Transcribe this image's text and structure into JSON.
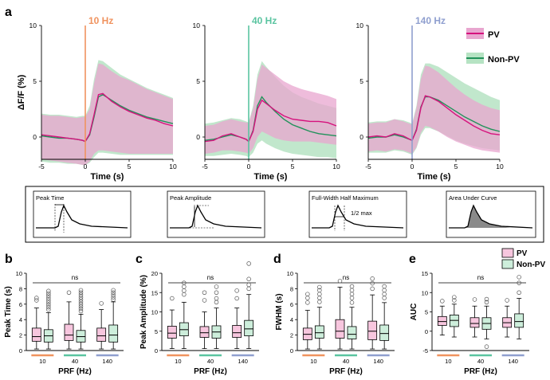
{
  "panel_labels": {
    "a": "a",
    "b": "b",
    "c": "c",
    "d": "d",
    "e": "e"
  },
  "colors": {
    "pv": "#d6127d",
    "pv_fill": "#e8a6cf",
    "nonpv": "#21925a",
    "nonpv_fill": "#b6e3c3",
    "hz10": "#f0935f",
    "hz40": "#5ac4a0",
    "hz140": "#8f9fcf"
  },
  "legend_top": {
    "pv": "PV",
    "nonpv": "Non-PV"
  },
  "legend_bottom": {
    "pv": "PV",
    "nonpv": "Non-PV"
  },
  "metrics_strip": {
    "peak_time": "Peak Time",
    "peak_amplitude": "Peak Amplitude",
    "fwhm": "Full-Width Half Maximum",
    "half_max": "1/2 max",
    "auc": "Area Under Curve"
  },
  "chart_data": [
    {
      "type": "line",
      "title": "10 Hz",
      "xlabel": "Time (s)",
      "ylabel": "ΔF/F (%)",
      "xlim": [
        -5,
        10
      ],
      "ylim": [
        -2,
        10
      ],
      "xticks": [
        "-5",
        "0",
        "5",
        "10"
      ],
      "yticks": [
        "0",
        "5",
        "10"
      ],
      "stim_time": 0,
      "x": [
        -5,
        -4,
        -3,
        -2,
        -1,
        -0.3,
        0,
        0.5,
        1,
        1.5,
        2,
        3,
        4,
        5,
        6,
        7,
        8,
        9,
        10
      ],
      "series": [
        {
          "name": "PV",
          "mean": [
            0.2,
            0.1,
            0.0,
            -0.1,
            -0.2,
            -0.3,
            -0.4,
            0.3,
            2.0,
            3.8,
            3.9,
            3.2,
            2.7,
            2.3,
            2.0,
            1.7,
            1.5,
            1.2,
            1.0
          ],
          "lower": [
            -2.0,
            -2.1,
            -2.2,
            -2.3,
            -2.4,
            -2.5,
            -2.5,
            -2.2,
            -1.5,
            -1.2,
            -1.2,
            -1.3,
            -1.4,
            -1.5,
            -1.5,
            -1.5,
            -1.5,
            -1.5,
            -1.5
          ],
          "upper": [
            2.0,
            1.9,
            1.9,
            1.8,
            1.7,
            1.8,
            1.8,
            2.5,
            4.8,
            6.6,
            6.5,
            5.9,
            5.4,
            5.1,
            4.7,
            4.3,
            4.0,
            3.7,
            3.4
          ]
        },
        {
          "name": "Non-PV",
          "mean": [
            0.1,
            0.0,
            -0.1,
            -0.1,
            -0.2,
            -0.3,
            -0.4,
            0.2,
            1.8,
            3.6,
            3.8,
            3.3,
            2.8,
            2.4,
            2.1,
            1.8,
            1.6,
            1.4,
            1.2
          ],
          "lower": [
            -2.2,
            -2.3,
            -2.3,
            -2.4,
            -2.4,
            -2.5,
            -2.5,
            -2.3,
            -1.8,
            -1.4,
            -1.4,
            -1.5,
            -1.6,
            -1.6,
            -1.6,
            -1.6,
            -1.6,
            -1.6,
            -1.6
          ],
          "upper": [
            2.1,
            2.0,
            2.0,
            1.9,
            1.8,
            1.9,
            1.9,
            2.8,
            5.2,
            6.9,
            6.8,
            6.2,
            5.6,
            5.2,
            4.8,
            4.4,
            4.1,
            3.8,
            3.5
          ]
        }
      ]
    },
    {
      "type": "line",
      "title": "40 Hz",
      "xlabel": "Time (s)",
      "ylabel": "",
      "xlim": [
        -5,
        10
      ],
      "ylim": [
        -2,
        10
      ],
      "xticks": [
        "-5",
        "0",
        "5",
        "10"
      ],
      "yticks": [
        "0",
        "5",
        "10"
      ],
      "stim_time": 0,
      "x": [
        -5,
        -4,
        -3,
        -2,
        -1,
        -0.3,
        0,
        0.5,
        1,
        1.5,
        2,
        3,
        4,
        5,
        6,
        7,
        8,
        9,
        10
      ],
      "series": [
        {
          "name": "PV",
          "mean": [
            -0.4,
            -0.3,
            0.1,
            0.3,
            0.0,
            -0.2,
            -0.4,
            0.5,
            2.5,
            3.3,
            3.0,
            2.4,
            1.9,
            1.6,
            1.5,
            1.4,
            1.4,
            1.3,
            1.0
          ],
          "lower": [
            -1.5,
            -1.4,
            -1.2,
            -1.2,
            -1.3,
            -1.4,
            -1.5,
            -1.0,
            0.0,
            0.5,
            0.3,
            -0.1,
            -0.3,
            -0.4,
            -0.4,
            -0.4,
            -0.5,
            -0.6,
            -0.7
          ],
          "upper": [
            1.0,
            1.1,
            1.4,
            1.6,
            1.4,
            1.3,
            1.3,
            2.5,
            5.2,
            6.5,
            6.2,
            5.6,
            5.0,
            4.6,
            4.3,
            4.1,
            3.9,
            3.7,
            3.4
          ]
        },
        {
          "name": "Non-PV",
          "mean": [
            -0.3,
            -0.2,
            0.0,
            0.2,
            0.0,
            -0.2,
            -0.4,
            0.6,
            2.8,
            3.6,
            3.1,
            2.3,
            1.6,
            1.1,
            0.8,
            0.5,
            0.3,
            0.2,
            0.1
          ],
          "lower": [
            -1.7,
            -1.7,
            -1.6,
            -1.5,
            -1.6,
            -1.7,
            -1.8,
            -1.4,
            -0.6,
            -0.3,
            -0.6,
            -1.0,
            -1.3,
            -1.5,
            -1.6,
            -1.7,
            -1.8,
            -1.8,
            -1.9
          ],
          "upper": [
            1.2,
            1.3,
            1.5,
            1.7,
            1.6,
            1.4,
            1.3,
            2.8,
            5.6,
            6.8,
            6.3,
            5.4,
            4.6,
            4.0,
            3.6,
            3.3,
            3.0,
            2.8,
            2.6
          ]
        }
      ]
    },
    {
      "type": "line",
      "title": "140 Hz",
      "xlabel": "Time (s)",
      "ylabel": "",
      "xlim": [
        -5,
        10
      ],
      "ylim": [
        -2,
        10
      ],
      "xticks": [
        "-5",
        "0",
        "5",
        "10"
      ],
      "yticks": [
        "0",
        "5",
        "10"
      ],
      "stim_time": 0,
      "x": [
        -5,
        -4,
        -3,
        -2,
        -1,
        -0.3,
        0,
        0.5,
        1,
        1.5,
        2,
        3,
        4,
        5,
        6,
        7,
        8,
        9,
        10
      ],
      "series": [
        {
          "name": "PV",
          "mean": [
            0.0,
            0.1,
            0.0,
            0.3,
            0.1,
            -0.2,
            -0.3,
            0.6,
            2.6,
            3.7,
            3.6,
            3.2,
            2.6,
            2.0,
            1.5,
            1.0,
            0.6,
            0.3,
            0.2
          ],
          "lower": [
            -1.3,
            -1.2,
            -1.3,
            -1.1,
            -1.2,
            -1.4,
            -1.5,
            -0.9,
            0.4,
            1.0,
            0.9,
            0.5,
            0.0,
            -0.4,
            -0.7,
            -1.0,
            -1.2,
            -1.3,
            -1.4
          ],
          "upper": [
            1.2,
            1.3,
            1.3,
            1.6,
            1.4,
            1.2,
            1.1,
            2.6,
            5.2,
            6.4,
            6.3,
            5.8,
            5.1,
            4.4,
            3.8,
            3.3,
            2.9,
            2.6,
            2.4
          ]
        },
        {
          "name": "Non-PV",
          "mean": [
            -0.1,
            0.0,
            0.0,
            0.2,
            0.0,
            -0.2,
            -0.3,
            0.7,
            2.7,
            3.6,
            3.6,
            3.3,
            2.8,
            2.3,
            1.8,
            1.4,
            1.0,
            0.7,
            0.5
          ],
          "lower": [
            -1.4,
            -1.4,
            -1.4,
            -1.2,
            -1.3,
            -1.5,
            -1.6,
            -1.0,
            0.2,
            0.8,
            0.8,
            0.5,
            0.1,
            -0.3,
            -0.6,
            -0.8,
            -1.0,
            -1.1,
            -1.2
          ],
          "upper": [
            1.3,
            1.4,
            1.4,
            1.6,
            1.5,
            1.3,
            1.2,
            2.8,
            5.6,
            6.6,
            6.6,
            6.3,
            5.8,
            5.3,
            4.8,
            4.4,
            4.0,
            3.6,
            3.3
          ]
        }
      ]
    },
    {
      "type": "box",
      "panel": "b",
      "ylabel": "Peak Time (s)",
      "xlabel": "PRF (Hz)",
      "ylim": [
        0,
        10
      ],
      "yticks": [
        "0",
        "2",
        "4",
        "6",
        "8",
        "10"
      ],
      "groups": [
        "10",
        "40",
        "140"
      ],
      "sig": "ns",
      "series": [
        {
          "name": "PV",
          "boxes": [
            {
              "min": 0.2,
              "q1": 1.2,
              "median": 1.8,
              "q3": 2.9,
              "max": 5.5,
              "outliers": [
                6.5,
                6.8
              ]
            },
            {
              "min": 0.2,
              "q1": 1.3,
              "median": 2.0,
              "q3": 3.4,
              "max": 6.3,
              "outliers": [
                7.5
              ]
            },
            {
              "min": 0.2,
              "q1": 1.2,
              "median": 1.9,
              "q3": 2.9,
              "max": 5.3,
              "outliers": [
                6.1
              ]
            }
          ]
        },
        {
          "name": "Non-PV",
          "boxes": [
            {
              "min": 0.2,
              "q1": 1.1,
              "median": 1.9,
              "q3": 2.7,
              "max": 4.9,
              "outliers": [
                5.3,
                5.6,
                5.9,
                6.2,
                6.5,
                6.8,
                7.1,
                7.4,
                7.7
              ]
            },
            {
              "min": 0.2,
              "q1": 1.1,
              "median": 1.8,
              "q3": 2.6,
              "max": 4.7,
              "outliers": [
                5.1,
                5.4,
                5.7,
                6.0,
                6.3,
                6.6,
                6.9,
                7.2,
                7.5,
                7.8
              ]
            },
            {
              "min": 0.2,
              "q1": 1.1,
              "median": 2.0,
              "q3": 3.3,
              "max": 6.3,
              "outliers": [
                6.6,
                6.9,
                7.2,
                7.5,
                7.8
              ]
            }
          ]
        }
      ]
    },
    {
      "type": "box",
      "panel": "c",
      "ylabel": "Peak Amplitude (%)",
      "xlabel": "PRF (Hz)",
      "ylim": [
        0,
        20
      ],
      "yticks": [
        "0",
        "5",
        "10",
        "15",
        "20"
      ],
      "groups": [
        "10",
        "40",
        "140"
      ],
      "sig": "ns",
      "series": [
        {
          "name": "PV",
          "boxes": [
            {
              "min": 0.5,
              "q1": 3.2,
              "median": 4.5,
              "q3": 6.3,
              "max": 10.5,
              "outliers": [
                13.5
              ]
            },
            {
              "min": 0.5,
              "q1": 3.4,
              "median": 4.6,
              "q3": 6.2,
              "max": 10.0,
              "outliers": [
                13.0,
                15.0
              ]
            },
            {
              "min": 0.5,
              "q1": 3.4,
              "median": 4.6,
              "q3": 6.5,
              "max": 11.0,
              "outliers": [
                13.5,
                15.5
              ]
            }
          ]
        },
        {
          "name": "Non-PV",
          "boxes": [
            {
              "min": 0.5,
              "q1": 3.8,
              "median": 5.4,
              "q3": 7.2,
              "max": 12.5,
              "outliers": [
                14.5,
                15.5,
                16.5,
                17.5
              ]
            },
            {
              "min": 0.5,
              "q1": 3.2,
              "median": 4.8,
              "q3": 6.4,
              "max": 11.0,
              "outliers": [
                12.5,
                13.5,
                15.0,
                16.5
              ]
            },
            {
              "min": 0.5,
              "q1": 3.8,
              "median": 5.6,
              "q3": 7.8,
              "max": 14.5,
              "outliers": [
                16.0,
                17.0,
                18.5,
                22.5
              ]
            }
          ]
        }
      ]
    },
    {
      "type": "box",
      "panel": "d",
      "ylabel": "FWHM (s)",
      "xlabel": "PRF (Hz)",
      "ylim": [
        0,
        10
      ],
      "yticks": [
        "0",
        "2",
        "4",
        "6",
        "8",
        "10"
      ],
      "groups": [
        "10",
        "40",
        "140"
      ],
      "sig": "ns",
      "series": [
        {
          "name": "PV",
          "boxes": [
            {
              "min": 0.2,
              "q1": 1.4,
              "median": 2.1,
              "q3": 2.9,
              "max": 5.2,
              "outliers": [
                6.2,
                6.8,
                7.3
              ]
            },
            {
              "min": 0.2,
              "q1": 1.6,
              "median": 2.5,
              "q3": 4.0,
              "max": 8.2,
              "outliers": [
                9.0
              ]
            },
            {
              "min": 0.2,
              "q1": 1.4,
              "median": 2.5,
              "q3": 3.8,
              "max": 7.2,
              "outliers": [
                8.0,
                8.7,
                9.3
              ]
            }
          ]
        },
        {
          "name": "Non-PV",
          "boxes": [
            {
              "min": 0.2,
              "q1": 1.6,
              "median": 2.3,
              "q3": 3.2,
              "max": 5.6,
              "outliers": [
                6.3,
                6.8,
                7.3,
                7.8,
                8.2
              ]
            },
            {
              "min": 0.2,
              "q1": 1.5,
              "median": 2.1,
              "q3": 3.1,
              "max": 5.6,
              "outliers": [
                6.2,
                6.8,
                7.3,
                7.8,
                8.3
              ]
            },
            {
              "min": 0.2,
              "q1": 1.3,
              "median": 2.2,
              "q3": 3.3,
              "max": 6.2,
              "outliers": [
                6.8,
                7.3,
                7.8,
                8.3
              ]
            }
          ]
        }
      ]
    },
    {
      "type": "box",
      "panel": "e",
      "ylabel": "AUC",
      "xlabel": "PRF (Hz)",
      "ylim": [
        -5,
        15
      ],
      "yticks": [
        "-5",
        "0",
        "5",
        "10",
        "15"
      ],
      "groups": [
        "10",
        "40",
        "140"
      ],
      "sig": "ns",
      "series": [
        {
          "name": "PV",
          "boxes": [
            {
              "min": -1.0,
              "q1": 1.5,
              "median": 2.5,
              "q3": 3.8,
              "max": 6.5,
              "outliers": [
                7.8
              ]
            },
            {
              "min": -1.5,
              "q1": 1.0,
              "median": 2.0,
              "q3": 3.5,
              "max": 6.5,
              "outliers": [
                8.2
              ]
            },
            {
              "min": -1.5,
              "q1": 1.0,
              "median": 2.2,
              "q3": 3.5,
              "max": 6.5,
              "outliers": [
                8.0
              ]
            }
          ]
        },
        {
          "name": "Non-PV",
          "boxes": [
            {
              "min": -1.5,
              "q1": 1.2,
              "median": 2.8,
              "q3": 4.2,
              "max": 7.0,
              "outliers": [
                8.0,
                8.8
              ]
            },
            {
              "min": -2.0,
              "q1": 0.5,
              "median": 2.0,
              "q3": 3.5,
              "max": 6.5,
              "outliers": [
                -4.0,
                7.5,
                8.3
              ]
            },
            {
              "min": -2.0,
              "q1": 1.0,
              "median": 2.5,
              "q3": 4.5,
              "max": 8.5,
              "outliers": [
                10.0,
                12.5,
                14.0
              ]
            }
          ]
        }
      ]
    }
  ]
}
